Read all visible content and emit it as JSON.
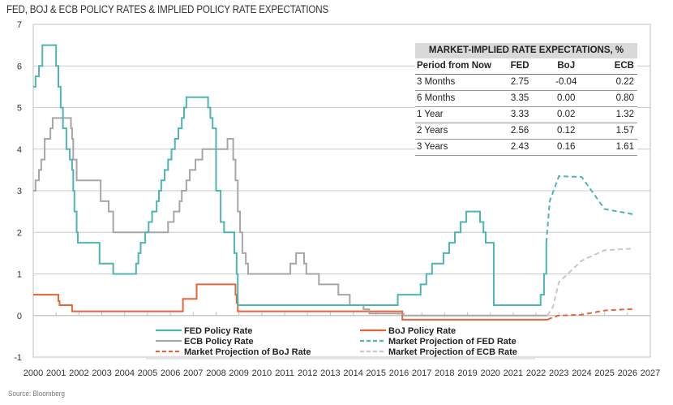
{
  "chart_data": {
    "type": "line",
    "title": "FED, BOJ & ECB POLICY RATES & IMPLIED POLICY RATE EXPECTATIONS",
    "source": "Source: Bloomberg",
    "xlabel": "",
    "ylabel": "",
    "xlim": [
      2000,
      2027
    ],
    "ylim": [
      -1,
      7
    ],
    "x_ticks": [
      "2000",
      "2001",
      "2002",
      "2003",
      "2004",
      "2005",
      "2006",
      "2007",
      "2008",
      "2009",
      "2010",
      "2011",
      "2012",
      "2013",
      "2014",
      "2015",
      "2016",
      "2017",
      "2018",
      "2019",
      "2020",
      "2021",
      "2022",
      "2023",
      "2024",
      "2025",
      "2026",
      "2027"
    ],
    "y_ticks": [
      "-1",
      "0",
      "1",
      "2",
      "3",
      "4",
      "5",
      "6",
      "7"
    ],
    "grid": "horizontal",
    "colors": {
      "fed": "#4fb5b2",
      "boj": "#e8633a",
      "ecb": "#a6a6a6",
      "ecb_projection": "#c8c8c8",
      "axis": "#bfbfbf",
      "grid": "#cccccc"
    },
    "series": [
      {
        "name": "FED Policy Rate",
        "key": "fed",
        "style": "step",
        "points": [
          [
            2000.0,
            5.5
          ],
          [
            2000.1,
            5.75
          ],
          [
            2000.25,
            6.0
          ],
          [
            2000.4,
            6.5
          ],
          [
            2001.0,
            6.0
          ],
          [
            2001.1,
            5.5
          ],
          [
            2001.2,
            5.0
          ],
          [
            2001.3,
            4.5
          ],
          [
            2001.45,
            4.0
          ],
          [
            2001.6,
            3.75
          ],
          [
            2001.7,
            3.5
          ],
          [
            2001.75,
            3.0
          ],
          [
            2001.8,
            2.5
          ],
          [
            2001.9,
            2.0
          ],
          [
            2001.95,
            1.75
          ],
          [
            2002.9,
            1.25
          ],
          [
            2003.5,
            1.0
          ],
          [
            2004.5,
            1.25
          ],
          [
            2004.6,
            1.5
          ],
          [
            2004.7,
            1.75
          ],
          [
            2004.9,
            2.0
          ],
          [
            2005.05,
            2.25
          ],
          [
            2005.2,
            2.5
          ],
          [
            2005.4,
            2.75
          ],
          [
            2005.5,
            3.0
          ],
          [
            2005.6,
            3.25
          ],
          [
            2005.75,
            3.5
          ],
          [
            2005.9,
            3.75
          ],
          [
            2006.05,
            4.0
          ],
          [
            2006.2,
            4.25
          ],
          [
            2006.35,
            4.5
          ],
          [
            2006.5,
            4.75
          ],
          [
            2006.6,
            5.0
          ],
          [
            2006.7,
            5.25
          ],
          [
            2007.65,
            5.0
          ],
          [
            2007.75,
            4.75
          ],
          [
            2007.85,
            4.5
          ],
          [
            2008.0,
            3.0
          ],
          [
            2008.2,
            2.25
          ],
          [
            2008.35,
            2.0
          ],
          [
            2008.8,
            1.5
          ],
          [
            2008.9,
            1.0
          ],
          [
            2008.95,
            0.25
          ],
          [
            2015.95,
            0.5
          ],
          [
            2016.95,
            0.75
          ],
          [
            2017.2,
            1.0
          ],
          [
            2017.45,
            1.25
          ],
          [
            2017.95,
            1.5
          ],
          [
            2018.2,
            1.75
          ],
          [
            2018.45,
            2.0
          ],
          [
            2018.7,
            2.25
          ],
          [
            2018.95,
            2.5
          ],
          [
            2019.55,
            2.25
          ],
          [
            2019.7,
            2.0
          ],
          [
            2019.8,
            1.75
          ],
          [
            2020.15,
            0.25
          ],
          [
            2022.2,
            0.5
          ],
          [
            2022.35,
            1.0
          ],
          [
            2022.45,
            1.75
          ]
        ]
      },
      {
        "name": "ECB Policy Rate",
        "key": "ecb",
        "style": "step",
        "points": [
          [
            2000.0,
            3.0
          ],
          [
            2000.1,
            3.25
          ],
          [
            2000.25,
            3.5
          ],
          [
            2000.35,
            3.75
          ],
          [
            2000.5,
            4.25
          ],
          [
            2000.75,
            4.5
          ],
          [
            2000.85,
            4.75
          ],
          [
            2001.65,
            4.5
          ],
          [
            2001.7,
            4.25
          ],
          [
            2001.75,
            3.75
          ],
          [
            2001.9,
            3.25
          ],
          [
            2002.95,
            2.75
          ],
          [
            2003.3,
            2.5
          ],
          [
            2003.5,
            2.0
          ],
          [
            2005.9,
            2.25
          ],
          [
            2006.15,
            2.5
          ],
          [
            2006.4,
            2.75
          ],
          [
            2006.5,
            3.0
          ],
          [
            2006.7,
            3.25
          ],
          [
            2006.85,
            3.5
          ],
          [
            2007.1,
            3.75
          ],
          [
            2007.4,
            4.0
          ],
          [
            2008.5,
            4.25
          ],
          [
            2008.75,
            3.75
          ],
          [
            2008.85,
            3.25
          ],
          [
            2008.95,
            2.5
          ],
          [
            2009.05,
            2.0
          ],
          [
            2009.15,
            1.5
          ],
          [
            2009.3,
            1.25
          ],
          [
            2009.4,
            1.0
          ],
          [
            2011.25,
            1.25
          ],
          [
            2011.5,
            1.5
          ],
          [
            2011.85,
            1.25
          ],
          [
            2011.95,
            1.0
          ],
          [
            2012.5,
            0.75
          ],
          [
            2013.35,
            0.5
          ],
          [
            2013.85,
            0.25
          ],
          [
            2014.45,
            0.15
          ],
          [
            2014.7,
            0.05
          ],
          [
            2016.2,
            0.0
          ],
          [
            2019.7,
            0.0
          ],
          [
            2022.5,
            0.0
          ]
        ]
      },
      {
        "name": "BoJ Policy Rate",
        "key": "boj",
        "style": "step",
        "points": [
          [
            2000.0,
            0.5
          ],
          [
            2001.05,
            0.5
          ],
          [
            2001.1,
            0.35
          ],
          [
            2001.15,
            0.25
          ],
          [
            2001.7,
            0.1
          ],
          [
            2006.5,
            0.1
          ],
          [
            2006.55,
            0.4
          ],
          [
            2007.1,
            0.4
          ],
          [
            2007.15,
            0.75
          ],
          [
            2008.8,
            0.75
          ],
          [
            2008.85,
            0.5
          ],
          [
            2008.9,
            0.3
          ],
          [
            2008.95,
            0.1
          ],
          [
            2016.1,
            0.1
          ],
          [
            2016.15,
            -0.1
          ],
          [
            2022.5,
            -0.1
          ]
        ]
      },
      {
        "name": "Market Projection of FED Rate",
        "key": "fed",
        "style": "dashed",
        "points": [
          [
            2022.45,
            1.75
          ],
          [
            2022.6,
            2.75
          ],
          [
            2023.0,
            3.35
          ],
          [
            2024.0,
            3.33
          ],
          [
            2025.0,
            2.56
          ],
          [
            2026.3,
            2.43
          ]
        ]
      },
      {
        "name": "Market Projection of BoJ Rate",
        "key": "boj",
        "style": "dashed",
        "points": [
          [
            2022.5,
            -0.1
          ],
          [
            2022.75,
            -0.04
          ],
          [
            2023.0,
            0.0
          ],
          [
            2024.0,
            0.02
          ],
          [
            2025.0,
            0.12
          ],
          [
            2026.3,
            0.16
          ]
        ]
      },
      {
        "name": "Market Projection of ECB Rate",
        "key": "ecb_projection",
        "style": "dashed",
        "points": [
          [
            2022.5,
            0.0
          ],
          [
            2022.75,
            0.22
          ],
          [
            2023.0,
            0.8
          ],
          [
            2024.0,
            1.32
          ],
          [
            2025.0,
            1.57
          ],
          [
            2026.3,
            1.61
          ]
        ]
      }
    ],
    "legend": {
      "placement": "bottom",
      "items": [
        {
          "label": "FED Policy Rate",
          "key": "fed",
          "dashed": false
        },
        {
          "label": "BoJ Policy Rate",
          "key": "boj",
          "dashed": false
        },
        {
          "label": "ECB Policy Rate",
          "key": "ecb",
          "dashed": false
        },
        {
          "label": "Market Projection of FED Rate",
          "key": "fed",
          "dashed": true
        },
        {
          "label": "Market Projection of BoJ Rate",
          "key": "boj",
          "dashed": true
        },
        {
          "label": "Market Projection of ECB Rate",
          "key": "ecb_projection",
          "dashed": true
        }
      ]
    },
    "table": {
      "title": "MARKET-IMPLIED RATE EXPECTATIONS, %",
      "columns": [
        "Period from Now",
        "FED",
        "BoJ",
        "ECB"
      ],
      "rows": [
        [
          "3 Months",
          "2.75",
          "-0.04",
          "0.22"
        ],
        [
          "6 Months",
          "3.35",
          "0.00",
          "0.80"
        ],
        [
          "1 Year",
          "3.33",
          "0.02",
          "1.32"
        ],
        [
          "2 Years",
          "2.56",
          "0.12",
          "1.57"
        ],
        [
          "3 Years",
          "2.43",
          "0.16",
          "1.61"
        ]
      ]
    }
  }
}
